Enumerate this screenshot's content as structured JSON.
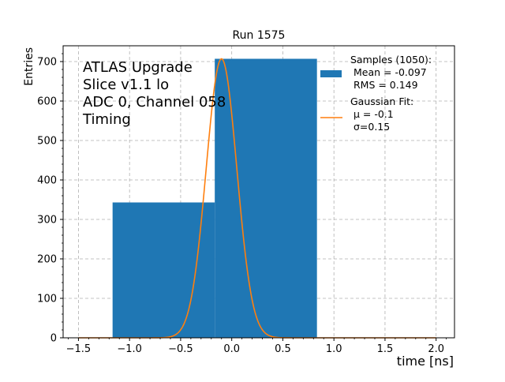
{
  "chart_data": {
    "type": "bar",
    "title": "Run 1575",
    "xlabel": "time [ns]",
    "ylabel": "Entries",
    "xlim": [
      -1.65,
      2.18
    ],
    "ylim": [
      0,
      740
    ],
    "xticks": [
      -1.5,
      -1.0,
      -0.5,
      0.0,
      0.5,
      1.0,
      1.5,
      2.0
    ],
    "xtick_labels": [
      "−1.5",
      "−1.0",
      "−0.5",
      "0.0",
      "0.5",
      "1.0",
      "1.5",
      "2.0"
    ],
    "yticks": [
      0,
      100,
      200,
      300,
      400,
      500,
      600,
      700
    ],
    "ytick_labels": [
      "0",
      "100",
      "200",
      "300",
      "400",
      "500",
      "600",
      "700"
    ],
    "grid": true,
    "legend_position": "top-right",
    "annotation_lines": [
      "ATLAS Upgrade",
      "Slice v1.1 lo",
      "ADC 0, Channel 058",
      "Timing"
    ],
    "histogram": {
      "name_lines": [
        "Samples (1050):",
        " Mean = -0.097",
        " RMS = 0.149"
      ],
      "color": "#1f77b4",
      "bins": [
        {
          "x0": -1.166,
          "x1": -0.166,
          "value": 343
        },
        {
          "x0": -0.166,
          "x1": 0.834,
          "value": 707
        }
      ]
    },
    "fit": {
      "type": "gaussian",
      "name_lines": [
        "Gaussian Fit:",
        " μ = -0.1",
        " σ=0.15"
      ],
      "color": "#ff7f0e",
      "mu": -0.1,
      "sigma": 0.15,
      "amplitude": 707,
      "x_range": [
        -1.5,
        2.0
      ]
    }
  }
}
